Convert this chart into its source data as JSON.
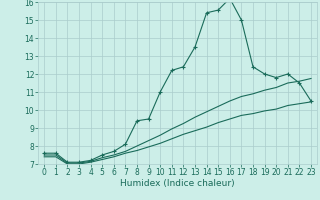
{
  "title": "",
  "xlabel": "Humidex (Indice chaleur)",
  "bg_color": "#cceee8",
  "grid_color": "#aacccc",
  "line_color": "#1a6b5a",
  "xlim": [
    -0.5,
    23.5
  ],
  "ylim": [
    7,
    16
  ],
  "xticks": [
    0,
    1,
    2,
    3,
    4,
    5,
    6,
    7,
    8,
    9,
    10,
    11,
    12,
    13,
    14,
    15,
    16,
    17,
    18,
    19,
    20,
    21,
    22,
    23
  ],
  "yticks": [
    7,
    8,
    9,
    10,
    11,
    12,
    13,
    14,
    15,
    16
  ],
  "line1_x": [
    0,
    1,
    2,
    3,
    4,
    5,
    6,
    7,
    8,
    9,
    10,
    11,
    12,
    13,
    14,
    15,
    16,
    17,
    18,
    19,
    20,
    21,
    22,
    23
  ],
  "line1_y": [
    7.6,
    7.6,
    7.1,
    7.1,
    7.2,
    7.5,
    7.7,
    8.1,
    9.4,
    9.5,
    11.0,
    12.2,
    12.4,
    13.5,
    15.4,
    15.55,
    16.2,
    15.0,
    12.4,
    12.0,
    11.8,
    12.0,
    11.5,
    10.5
  ],
  "line2_x": [
    0,
    1,
    2,
    3,
    4,
    5,
    6,
    7,
    8,
    9,
    10,
    11,
    12,
    13,
    14,
    15,
    16,
    17,
    18,
    19,
    20,
    21,
    22,
    23
  ],
  "line2_y": [
    7.5,
    7.5,
    7.05,
    7.05,
    7.15,
    7.35,
    7.5,
    7.7,
    8.0,
    8.3,
    8.6,
    8.95,
    9.25,
    9.6,
    9.9,
    10.2,
    10.5,
    10.75,
    10.9,
    11.1,
    11.25,
    11.5,
    11.6,
    11.75
  ],
  "line3_x": [
    0,
    1,
    2,
    3,
    4,
    5,
    6,
    7,
    8,
    9,
    10,
    11,
    12,
    13,
    14,
    15,
    16,
    17,
    18,
    19,
    20,
    21,
    22,
    23
  ],
  "line3_y": [
    7.4,
    7.4,
    7.0,
    7.0,
    7.1,
    7.25,
    7.4,
    7.6,
    7.75,
    7.95,
    8.15,
    8.4,
    8.65,
    8.85,
    9.05,
    9.3,
    9.5,
    9.7,
    9.8,
    9.95,
    10.05,
    10.25,
    10.35,
    10.45
  ],
  "xlabel_fontsize": 6.5,
  "tick_fontsize": 5.5,
  "linewidth": 0.8,
  "marker_size": 3.0
}
